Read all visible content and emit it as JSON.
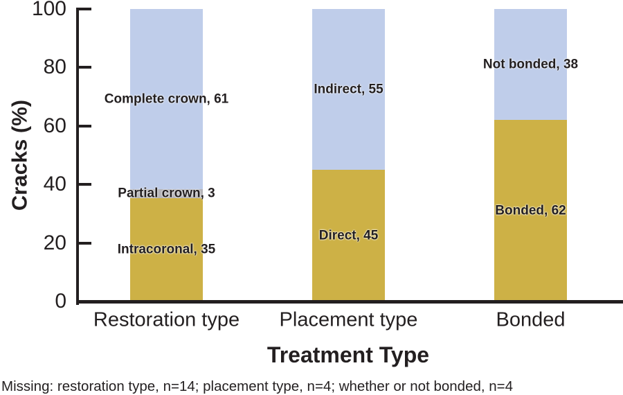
{
  "chart_data": {
    "type": "bar",
    "subtype": "stacked-100-percent",
    "title": "",
    "ylabel": "Cracks (%)",
    "xlabel": "Treatment Type",
    "ylim": [
      0,
      100
    ],
    "yticks": [
      0,
      20,
      40,
      60,
      80,
      100
    ],
    "grid": false,
    "legend": "none (segments labeled inline)",
    "categories": [
      "Restoration type",
      "Placement type",
      "Bonded"
    ],
    "bars": [
      {
        "category": "Restoration type",
        "segments": [
          {
            "name": "Intracoronal",
            "value": 35,
            "display": "Intracoronal, 35",
            "color": "#cdb146"
          },
          {
            "name": "Partial crown",
            "value": 3,
            "display": "Partial crown, 3",
            "color": "#b5b4b8"
          },
          {
            "name": "Complete crown",
            "value": 61,
            "display": "Complete crown, 61",
            "color": "#bfcdea"
          }
        ]
      },
      {
        "category": "Placement type",
        "segments": [
          {
            "name": "Direct",
            "value": 45,
            "display": "Direct, 45",
            "color": "#cdb146"
          },
          {
            "name": "Indirect",
            "value": 55,
            "display": "Indirect, 55",
            "color": "#bfcdea"
          }
        ]
      },
      {
        "category": "Bonded",
        "segments": [
          {
            "name": "Bonded",
            "value": 62,
            "display": "Bonded, 62",
            "color": "#cdb146"
          },
          {
            "name": "Not bonded",
            "value": 38,
            "display": "Not bonded, 38",
            "color": "#bfcdea"
          }
        ]
      }
    ],
    "footnote": "Missing: restoration type, n=14; placement type, n=4; whether or not bonded, n=4",
    "colors": {
      "gold": "#cdb146",
      "blue": "#bfcdea",
      "gray": "#b5b4b8",
      "axis": "#231f20",
      "text": "#231f20",
      "background": "#ffffff"
    }
  }
}
